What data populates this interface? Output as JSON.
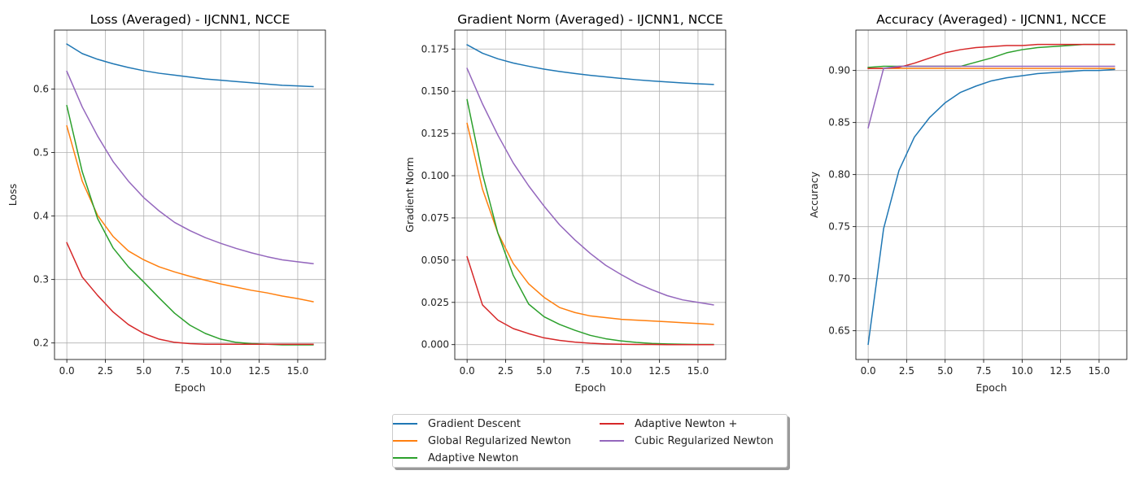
{
  "chart_data": [
    {
      "type": "line",
      "title": "Loss (Averaged) - IJCNN1, NCCE",
      "xlabel": "Epoch",
      "ylabel": "Loss",
      "xlim": [
        -0.8,
        16.8
      ],
      "ylim": [
        0.174,
        0.693
      ],
      "xticks": [
        0,
        2.5,
        5,
        7.5,
        10,
        12.5,
        15
      ],
      "xtick_labels": [
        "0.0",
        "2.5",
        "5.0",
        "7.5",
        "10.0",
        "12.5",
        "15.0"
      ],
      "yticks": [
        0.2,
        0.3,
        0.4,
        0.5,
        0.6
      ],
      "ytick_labels": [
        "0.2",
        "0.3",
        "0.4",
        "0.5",
        "0.6"
      ],
      "grid": true,
      "x": [
        0,
        1,
        2,
        3,
        4,
        5,
        6,
        7,
        8,
        9,
        10,
        11,
        12,
        13,
        14,
        15,
        16
      ],
      "series": [
        {
          "name": "Gradient Descent",
          "values": [
            0.671,
            0.656,
            0.647,
            0.64,
            0.634,
            0.629,
            0.625,
            0.622,
            0.619,
            0.616,
            0.614,
            0.612,
            0.61,
            0.608,
            0.606,
            0.605,
            0.604
          ]
        },
        {
          "name": "Global Regularized Newton",
          "values": [
            0.542,
            0.455,
            0.401,
            0.368,
            0.345,
            0.331,
            0.32,
            0.312,
            0.305,
            0.299,
            0.293,
            0.288,
            0.283,
            0.279,
            0.274,
            0.27,
            0.265
          ]
        },
        {
          "name": "Adaptive Newton",
          "values": [
            0.574,
            0.47,
            0.396,
            0.35,
            0.32,
            0.296,
            0.271,
            0.247,
            0.228,
            0.215,
            0.206,
            0.201,
            0.199,
            0.198,
            0.197,
            0.197,
            0.197
          ]
        },
        {
          "name": "Adaptive Newton +",
          "values": [
            0.358,
            0.304,
            0.275,
            0.249,
            0.229,
            0.215,
            0.206,
            0.201,
            0.199,
            0.198,
            0.198,
            0.198,
            0.198,
            0.198,
            0.198,
            0.198,
            0.198
          ]
        },
        {
          "name": "Cubic Regularized Newton",
          "values": [
            0.628,
            0.572,
            0.526,
            0.486,
            0.455,
            0.429,
            0.408,
            0.39,
            0.377,
            0.366,
            0.357,
            0.349,
            0.342,
            0.336,
            0.331,
            0.328,
            0.325
          ]
        }
      ]
    },
    {
      "type": "line",
      "title": "Gradient Norm (Averaged) - IJCNN1, NCCE",
      "xlabel": "Epoch",
      "ylabel": "Gradient Norm",
      "xlim": [
        -0.8,
        16.8
      ],
      "ylim": [
        -0.0088,
        0.1862
      ],
      "xticks": [
        0,
        2.5,
        5,
        7.5,
        10,
        12.5,
        15
      ],
      "xtick_labels": [
        "0.0",
        "2.5",
        "5.0",
        "7.5",
        "10.0",
        "12.5",
        "15.0"
      ],
      "yticks": [
        0,
        0.025,
        0.05,
        0.075,
        0.1,
        0.125,
        0.15,
        0.175
      ],
      "ytick_labels": [
        "0.000",
        "0.025",
        "0.050",
        "0.075",
        "0.100",
        "0.125",
        "0.150",
        "0.175"
      ],
      "grid": true,
      "x": [
        0,
        1,
        2,
        3,
        4,
        5,
        6,
        7,
        8,
        9,
        10,
        11,
        12,
        13,
        14,
        15,
        16
      ],
      "series": [
        {
          "name": "Gradient Descent",
          "values": [
            0.1775,
            0.1725,
            0.1692,
            0.1667,
            0.1648,
            0.1631,
            0.1617,
            0.1605,
            0.1594,
            0.1585,
            0.1576,
            0.1568,
            0.1561,
            0.1555,
            0.1549,
            0.1544,
            0.154
          ]
        },
        {
          "name": "Global Regularized Newton",
          "values": [
            0.131,
            0.092,
            0.066,
            0.048,
            0.036,
            0.028,
            0.022,
            0.019,
            0.017,
            0.016,
            0.015,
            0.0145,
            0.014,
            0.0135,
            0.013,
            0.0125,
            0.012
          ]
        },
        {
          "name": "Adaptive Newton",
          "values": [
            0.145,
            0.101,
            0.066,
            0.041,
            0.024,
            0.0165,
            0.012,
            0.0085,
            0.0055,
            0.0035,
            0.0022,
            0.0013,
            0.0007,
            0.0004,
            0.0002,
            0.0001,
            0.0001
          ]
        },
        {
          "name": "Adaptive Newton +",
          "values": [
            0.052,
            0.0235,
            0.0145,
            0.0095,
            0.0065,
            0.004,
            0.0025,
            0.0015,
            0.0008,
            0.0004,
            0.0002,
            0.0001,
            0.0001,
            0,
            0,
            0,
            0
          ]
        },
        {
          "name": "Cubic Regularized Newton",
          "values": [
            0.1635,
            0.1425,
            0.124,
            0.1075,
            0.094,
            0.082,
            0.071,
            0.062,
            0.054,
            0.047,
            0.0415,
            0.0365,
            0.0325,
            0.029,
            0.0265,
            0.025,
            0.0235
          ]
        }
      ]
    },
    {
      "type": "line",
      "title": "Accuracy (Averaged) - IJCNN1, NCCE",
      "xlabel": "Epoch",
      "ylabel": "Accuracy",
      "xlim": [
        -0.8,
        16.8
      ],
      "ylim": [
        0.6224,
        0.9388
      ],
      "xticks": [
        0,
        2.5,
        5,
        7.5,
        10,
        12.5,
        15
      ],
      "xtick_labels": [
        "0.0",
        "2.5",
        "5.0",
        "7.5",
        "10.0",
        "12.5",
        "15.0"
      ],
      "yticks": [
        0.65,
        0.7,
        0.75,
        0.8,
        0.85,
        0.9
      ],
      "ytick_labels": [
        "0.65",
        "0.70",
        "0.75",
        "0.80",
        "0.85",
        "0.90"
      ],
      "grid": true,
      "x": [
        0,
        1,
        2,
        3,
        4,
        5,
        6,
        7,
        8,
        9,
        10,
        11,
        12,
        13,
        14,
        15,
        16
      ],
      "series": [
        {
          "name": "Gradient Descent",
          "values": [
            0.637,
            0.748,
            0.804,
            0.836,
            0.855,
            0.869,
            0.879,
            0.885,
            0.89,
            0.893,
            0.895,
            0.897,
            0.898,
            0.899,
            0.9,
            0.9,
            0.901
          ]
        },
        {
          "name": "Global Regularized Newton",
          "values": [
            0.902,
            0.902,
            0.902,
            0.902,
            0.902,
            0.902,
            0.902,
            0.902,
            0.902,
            0.902,
            0.902,
            0.902,
            0.902,
            0.902,
            0.902,
            0.902,
            0.902
          ]
        },
        {
          "name": "Adaptive Newton",
          "values": [
            0.903,
            0.904,
            0.904,
            0.904,
            0.904,
            0.904,
            0.904,
            0.908,
            0.912,
            0.917,
            0.92,
            0.922,
            0.923,
            0.924,
            0.925,
            0.925,
            0.925
          ]
        },
        {
          "name": "Adaptive Newton +",
          "values": [
            0.902,
            0.902,
            0.903,
            0.907,
            0.912,
            0.917,
            0.92,
            0.922,
            0.923,
            0.924,
            0.924,
            0.925,
            0.925,
            0.925,
            0.925,
            0.925,
            0.925
          ]
        },
        {
          "name": "Cubic Regularized Newton",
          "values": [
            0.845,
            0.902,
            0.904,
            0.904,
            0.904,
            0.904,
            0.904,
            0.904,
            0.904,
            0.904,
            0.904,
            0.904,
            0.904,
            0.904,
            0.904,
            0.904,
            0.904
          ]
        }
      ]
    }
  ],
  "legend": {
    "position": "bottom-center",
    "columns": 2,
    "items": [
      {
        "label": "Gradient Descent",
        "color": "#1f77b4"
      },
      {
        "label": "Global Regularized Newton",
        "color": "#ff7f0e"
      },
      {
        "label": "Adaptive Newton",
        "color": "#2ca02c"
      },
      {
        "label": "Adaptive Newton +",
        "color": "#d62728"
      },
      {
        "label": "Cubic Regularized Newton",
        "color": "#9467bd"
      }
    ]
  }
}
